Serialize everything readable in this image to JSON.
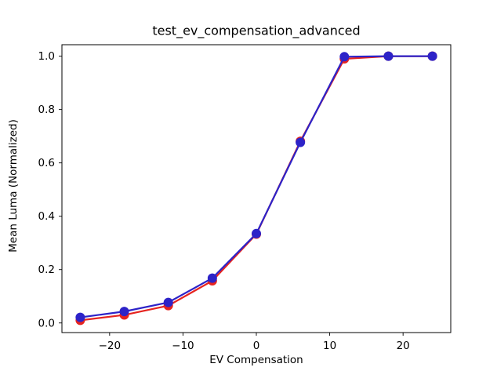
{
  "window": {
    "background": "#ffffff"
  },
  "chart_data": {
    "type": "line",
    "title": "test_ev_compensation_advanced",
    "xlabel": "EV Compensation",
    "ylabel": "Mean Luma (Normalized)",
    "x": [
      -24,
      -18,
      -12,
      -6,
      0,
      6,
      12,
      18,
      24
    ],
    "series": [
      {
        "name": "red-series",
        "color": "#e62420",
        "marker": "circle",
        "line_width": 2.2,
        "marker_radius": 6,
        "values": [
          0.01,
          0.03,
          0.065,
          0.158,
          0.333,
          0.681,
          0.99,
          1.0,
          1.0
        ]
      },
      {
        "name": "blue-series",
        "color": "#2d23c8",
        "marker": "circle",
        "line_width": 2.2,
        "marker_radius": 6,
        "values": [
          0.021,
          0.043,
          0.077,
          0.168,
          0.335,
          0.677,
          0.998,
          1.0,
          1.0
        ]
      }
    ],
    "xticks": [
      -20,
      -10,
      0,
      10,
      20
    ],
    "xtick_labels": [
      "−20",
      "−10",
      "0",
      "10",
      "20"
    ],
    "yticks": [
      0.0,
      0.2,
      0.4,
      0.6,
      0.8,
      1.0
    ],
    "ytick_labels": [
      "0.0",
      "0.2",
      "0.4",
      "0.6",
      "0.8",
      "1.0"
    ],
    "xlim": [
      -26.5,
      26.5
    ],
    "ylim": [
      -0.036,
      1.043
    ],
    "grid": false,
    "legend_position": null,
    "axis_color": "#000000"
  }
}
